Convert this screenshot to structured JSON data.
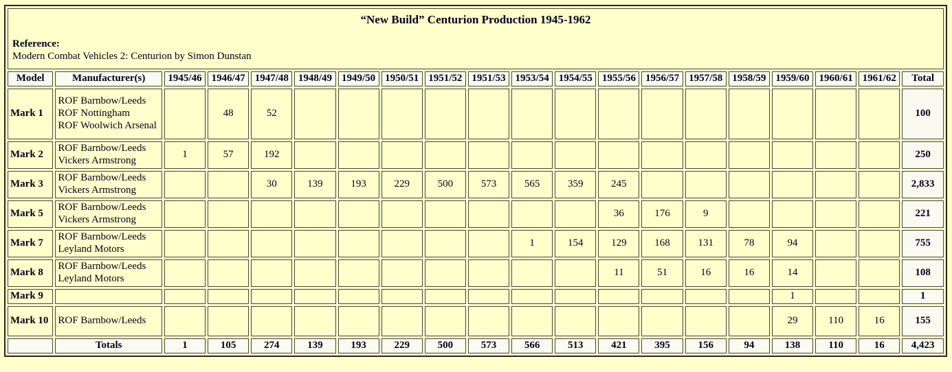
{
  "page": {
    "title": "“New Build” Centurion Production 1945-1962",
    "reference_label": "Reference:",
    "reference_text": "Modern Combat Vehicles 2: Centurion by Simon Dunstan"
  },
  "colors": {
    "page_background": "#FFFFCC",
    "cell_background": "#FFFFCC",
    "highlight_background": "#FAFAF0",
    "border": "#45453B",
    "text": "#00001C"
  },
  "table": {
    "columns": [
      "Model",
      "Manufacturer(s)",
      "1945/46",
      "1946/47",
      "1947/48",
      "1948/49",
      "1949/50",
      "1950/51",
      "1951/52",
      "1951/53",
      "1953/54",
      "1954/55",
      "1955/56",
      "1956/57",
      "1957/58",
      "1958/59",
      "1959/60",
      "1960/61",
      "1961/62",
      "Total"
    ],
    "rows": [
      {
        "model": "Mark 1",
        "manufacturers": "ROF Barnbow/Leeds\nROF Nottingham\nROF Woolwich Arsenal",
        "values": [
          "",
          "48",
          "52",
          "",
          "",
          "",
          "",
          "",
          "",
          "",
          "",
          "",
          "",
          "",
          "",
          "",
          ""
        ],
        "total": "100"
      },
      {
        "model": "Mark 2",
        "manufacturers": "ROF Barnbow/Leeds\nVickers Armstrong",
        "values": [
          "1",
          "57",
          "192",
          "",
          "",
          "",
          "",
          "",
          "",
          "",
          "",
          "",
          "",
          "",
          "",
          "",
          ""
        ],
        "total": "250"
      },
      {
        "model": "Mark 3",
        "manufacturers": "ROF Barnbow/Leeds\nVickers Armstrong",
        "values": [
          "",
          "",
          "30",
          "139",
          "193",
          "229",
          "500",
          "573",
          "565",
          "359",
          "245",
          "",
          "",
          "",
          "",
          "",
          ""
        ],
        "total": "2,833"
      },
      {
        "model": "Mark 5",
        "manufacturers": "ROF Barnbow/Leeds\nVickers Armstrong",
        "values": [
          "",
          "",
          "",
          "",
          "",
          "",
          "",
          "",
          "",
          "",
          "36",
          "176",
          "9",
          "",
          "",
          "",
          ""
        ],
        "total": "221"
      },
      {
        "model": "Mark 7",
        "manufacturers": "ROF Barnbow/Leeds\nLeyland Motors",
        "values": [
          "",
          "",
          "",
          "",
          "",
          "",
          "",
          "",
          "1",
          "154",
          "129",
          "168",
          "131",
          "78",
          "94",
          "",
          ""
        ],
        "total": "755"
      },
      {
        "model": "Mark 8",
        "manufacturers": "ROF Barnbow/Leeds\nLeyland Motors",
        "values": [
          "",
          "",
          "",
          "",
          "",
          "",
          "",
          "",
          "",
          "",
          "11",
          "51",
          "16",
          "16",
          "14",
          "",
          ""
        ],
        "total": "108"
      },
      {
        "model": "Mark 9",
        "manufacturers": "",
        "values": [
          "",
          "",
          "",
          "",
          "",
          "",
          "",
          "",
          "",
          "",
          "",
          "",
          "",
          "",
          "1",
          "",
          ""
        ],
        "total": "1"
      },
      {
        "model": "Mark 10",
        "manufacturers": "ROF Barnbow/Leeds",
        "values": [
          "",
          "",
          "",
          "",
          "",
          "",
          "",
          "",
          "",
          "",
          "",
          "",
          "",
          "",
          "29",
          "110",
          "16"
        ],
        "total": "155"
      }
    ],
    "totals_row": {
      "model": "",
      "label": "Totals",
      "values": [
        "1",
        "105",
        "274",
        "139",
        "193",
        "229",
        "500",
        "573",
        "566",
        "513",
        "421",
        "395",
        "156",
        "94",
        "138",
        "110",
        "16"
      ],
      "total": "4,423"
    }
  }
}
